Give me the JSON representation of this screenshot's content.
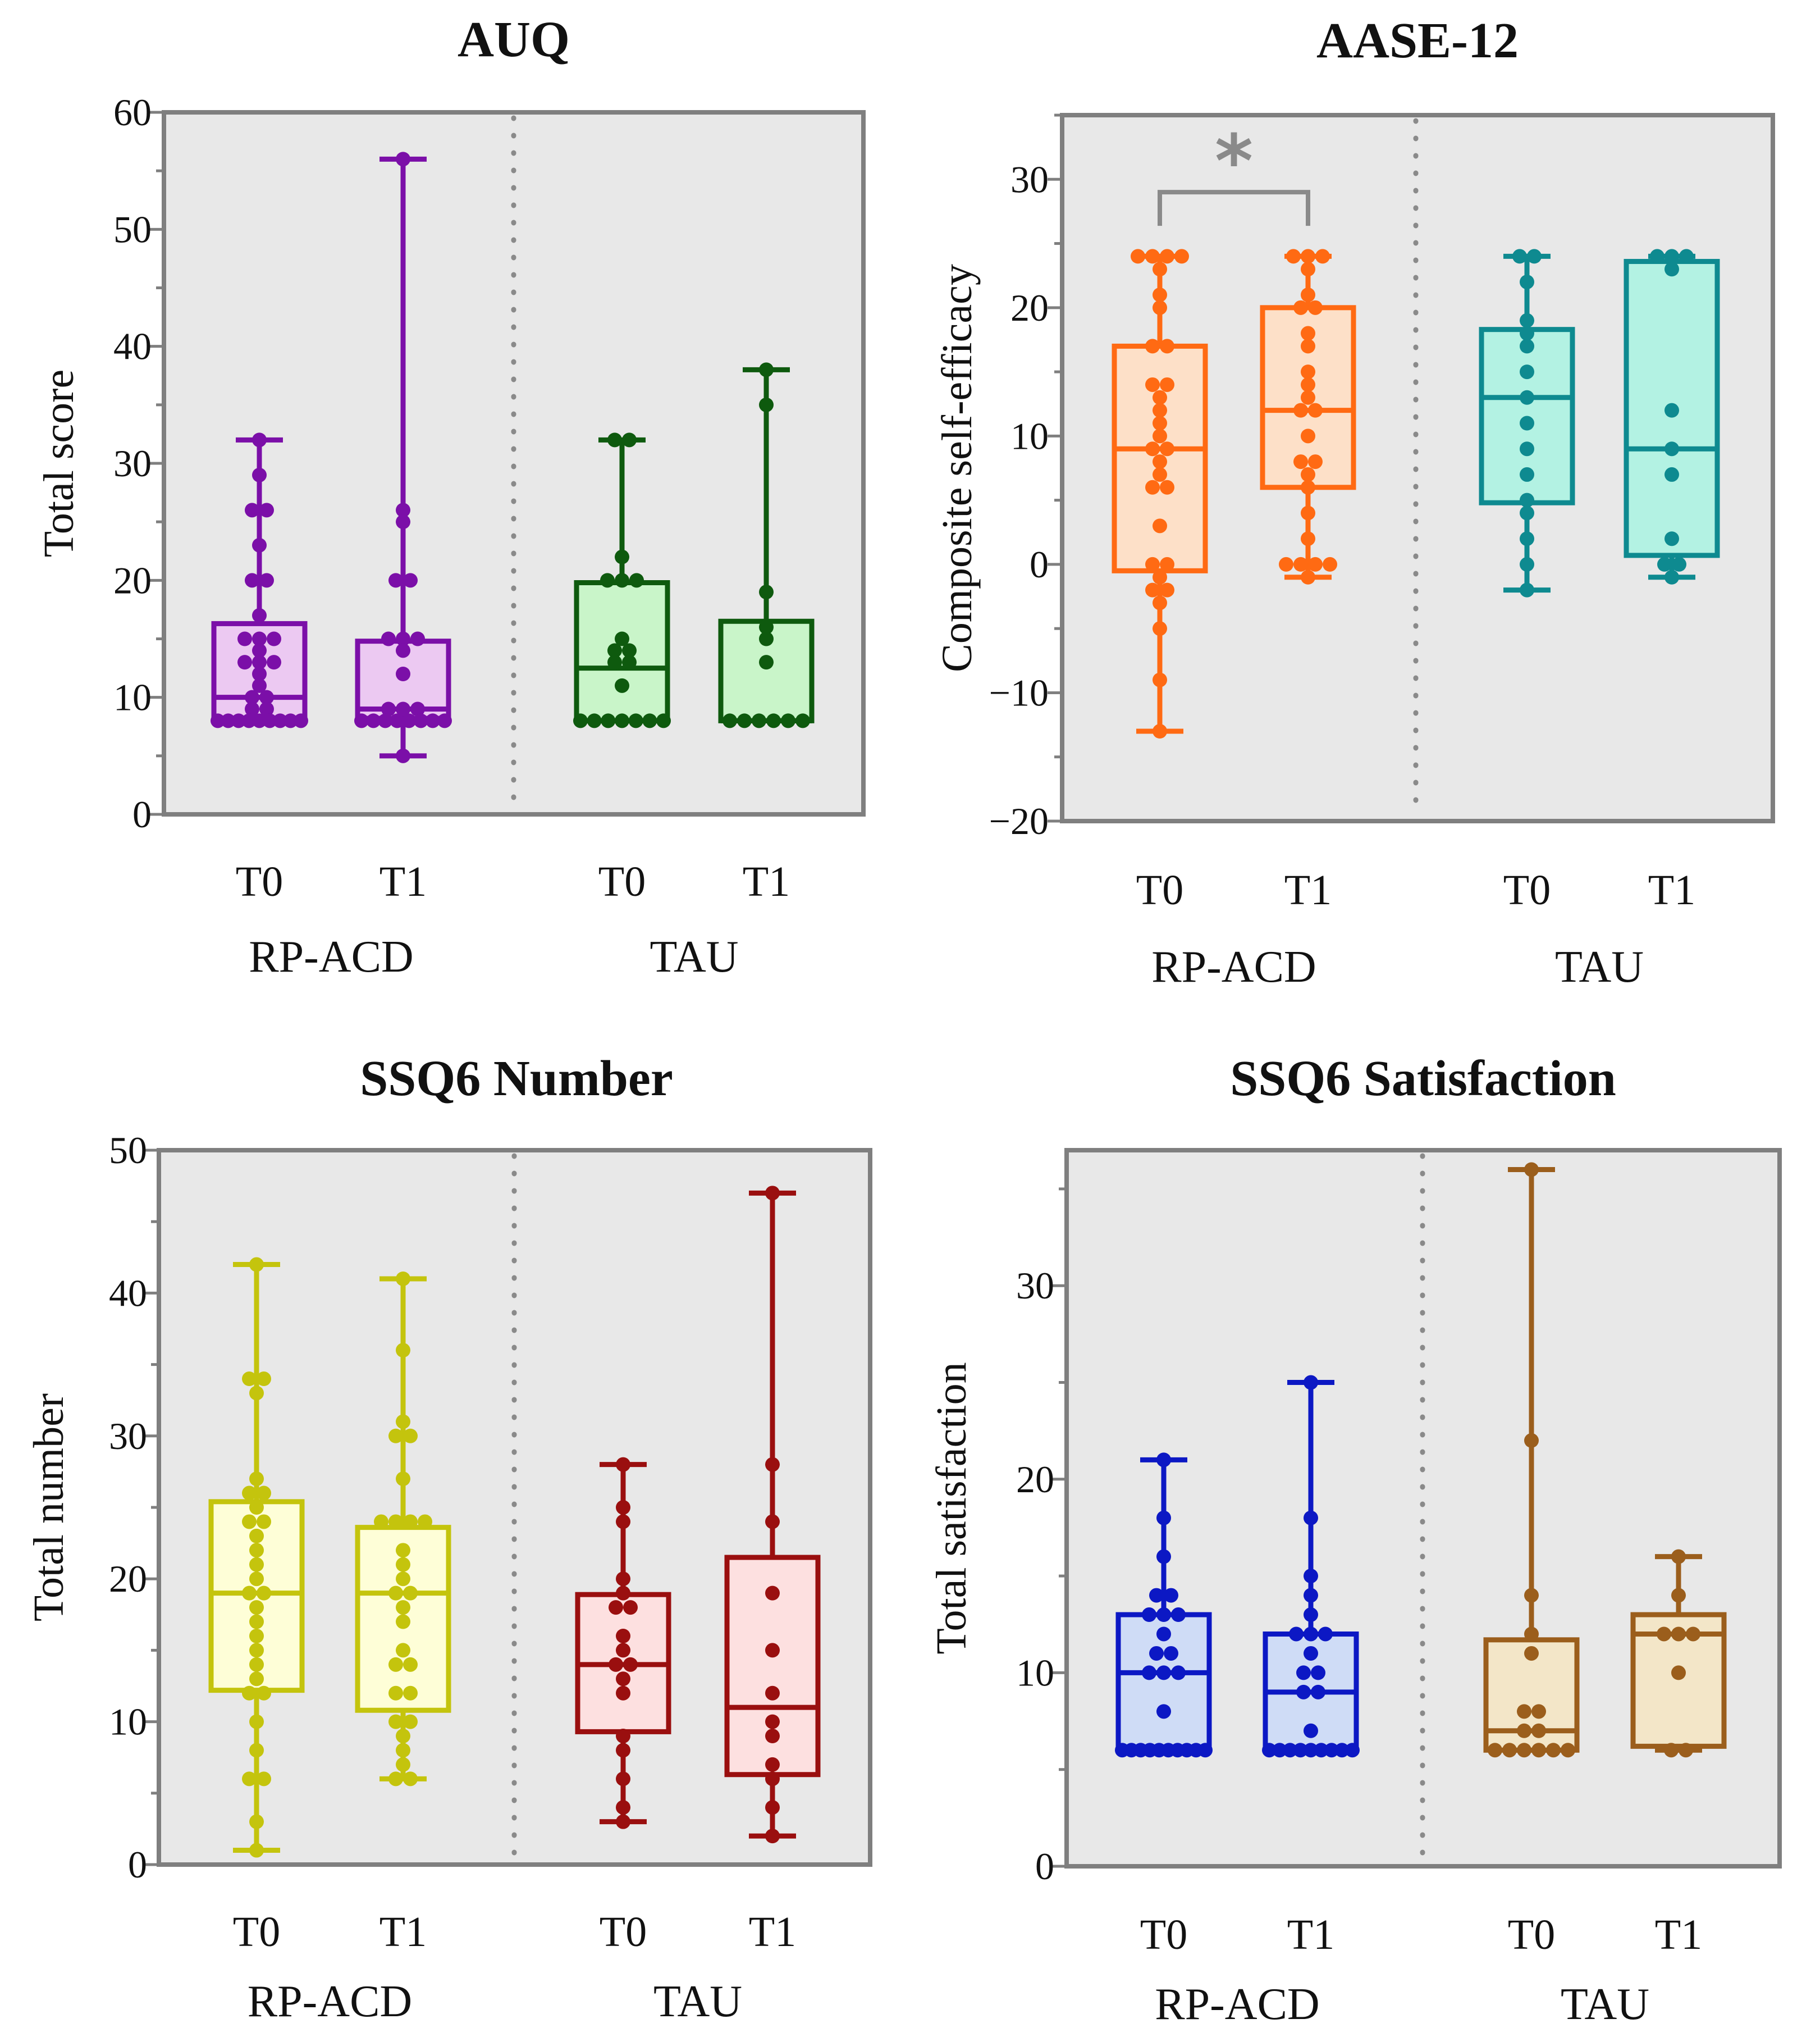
{
  "chart_data": [
    {
      "type": "box",
      "title": "AUQ",
      "ylabel": "Total score",
      "ylim": [
        0,
        60
      ],
      "yticks": [
        0,
        10,
        20,
        30,
        40,
        50,
        60
      ],
      "ytick_labels": [
        "0",
        "10",
        "20",
        "30",
        "40",
        "50",
        "60"
      ],
      "groups": [
        "RP-ACD",
        "TAU"
      ],
      "categories": [
        "T0",
        "T1",
        "T0",
        "T1"
      ],
      "boxes": [
        {
          "group": "RP-ACD",
          "time": "T0",
          "color": "#7b0fa8",
          "fill": "#ecc9f2",
          "min": 8,
          "q1": 8,
          "median": 10,
          "q3": 16.3,
          "max": 32,
          "points": [
            32,
            29,
            26,
            26,
            23,
            20,
            20,
            17,
            15,
            15,
            15,
            14,
            13,
            13,
            13,
            12,
            11,
            10,
            10,
            9,
            9,
            8,
            8,
            8,
            8,
            8,
            8,
            8,
            8,
            8
          ]
        },
        {
          "group": "RP-ACD",
          "time": "T1",
          "color": "#7b0fa8",
          "fill": "#ecc9f2",
          "min": 5,
          "q1": 8.2,
          "median": 9,
          "q3": 14.8,
          "max": 56,
          "points": [
            56,
            26,
            25,
            20,
            20,
            15,
            15,
            15,
            14,
            12,
            9,
            9,
            9,
            8,
            8,
            8,
            8,
            8,
            8,
            8,
            8,
            5
          ]
        },
        {
          "group": "TAU",
          "time": "T0",
          "color": "#0e5a0e",
          "fill": "#c9f5c9",
          "min": 8,
          "q1": 8,
          "median": 12.5,
          "q3": 19.8,
          "max": 32,
          "points": [
            32,
            32,
            22,
            20,
            20,
            20,
            15,
            14,
            14,
            13,
            13,
            11,
            8,
            8,
            8,
            8,
            8,
            8,
            8
          ]
        },
        {
          "group": "TAU",
          "time": "T1",
          "color": "#0e5a0e",
          "fill": "#c9f5c9",
          "min": 8,
          "q1": 8,
          "median": 8,
          "q3": 16.5,
          "max": 38,
          "points": [
            38,
            35,
            19,
            16,
            15,
            13,
            8,
            8,
            8,
            8,
            8,
            8
          ]
        }
      ],
      "annotations": []
    },
    {
      "type": "box",
      "title": "AASE-12",
      "ylabel": "Composite self-efficacy",
      "ylim": [
        -20,
        35
      ],
      "yticks": [
        -20,
        -10,
        0,
        10,
        20,
        30
      ],
      "ytick_labels": [
        "−20",
        "−10",
        "0",
        "10",
        "20",
        "30"
      ],
      "groups": [
        "RP-ACD",
        "TAU"
      ],
      "categories": [
        "T0",
        "T1",
        "T0",
        "T1"
      ],
      "boxes": [
        {
          "group": "RP-ACD",
          "time": "T0",
          "color": "#ff6a13",
          "fill": "#fde0c8",
          "min": -13,
          "q1": -0.5,
          "median": 9,
          "q3": 17,
          "max": 24,
          "points": [
            24,
            24,
            24,
            24,
            23,
            21,
            20,
            17,
            17,
            14,
            14,
            13,
            12,
            11,
            10,
            9,
            9,
            8,
            7,
            6,
            6,
            3,
            0,
            0,
            -1,
            -2,
            -2,
            -3,
            -5,
            -9,
            -13
          ]
        },
        {
          "group": "RP-ACD",
          "time": "T1",
          "color": "#ff6a13",
          "fill": "#fde0c8",
          "min": -1,
          "q1": 6,
          "median": 12,
          "q3": 20,
          "max": 24,
          "points": [
            24,
            24,
            24,
            23,
            21,
            20,
            20,
            18,
            17,
            15,
            14,
            13,
            12,
            12,
            10,
            8,
            8,
            7,
            6,
            4,
            2,
            0,
            0,
            0,
            0,
            -1
          ]
        },
        {
          "group": "TAU",
          "time": "T0",
          "color": "#0e8a90",
          "fill": "#b3f2e3",
          "min": -2,
          "q1": 4.8,
          "median": 13,
          "q3": 18.3,
          "max": 24,
          "points": [
            24,
            24,
            22,
            19,
            18,
            17,
            15,
            13,
            11,
            9,
            7,
            5,
            4,
            2,
            0,
            -2
          ]
        },
        {
          "group": "TAU",
          "time": "T1",
          "color": "#0e8a90",
          "fill": "#b3f2e3",
          "min": -1,
          "q1": 0.7,
          "median": 9,
          "q3": 23.6,
          "max": 24,
          "points": [
            24,
            24,
            24,
            23,
            12,
            9,
            7,
            2,
            0,
            0,
            -1
          ]
        }
      ],
      "annotations": [
        {
          "text": "*",
          "between": [
            "RP-ACD T0",
            "RP-ACD T1"
          ]
        }
      ]
    },
    {
      "type": "box",
      "title": "SSQ6 Number",
      "ylabel": "Total number",
      "ylim": [
        0,
        50
      ],
      "yticks": [
        0,
        10,
        20,
        30,
        40,
        50
      ],
      "ytick_labels": [
        "0",
        "10",
        "20",
        "30",
        "40",
        "50"
      ],
      "groups": [
        "RP-ACD",
        "TAU"
      ],
      "categories": [
        "T0",
        "T1",
        "T0",
        "T1"
      ],
      "boxes": [
        {
          "group": "RP-ACD",
          "time": "T0",
          "color": "#c4c40d",
          "fill": "#fefed7",
          "min": 1,
          "q1": 12.2,
          "median": 19,
          "q3": 25.4,
          "max": 42,
          "points": [
            42,
            34,
            34,
            33,
            27,
            26,
            26,
            25,
            24,
            24,
            23,
            22,
            21,
            20,
            19,
            19,
            18,
            17,
            16,
            15,
            14,
            13,
            12,
            12,
            10,
            8,
            6,
            6,
            3,
            1
          ]
        },
        {
          "group": "RP-ACD",
          "time": "T1",
          "color": "#c4c40d",
          "fill": "#fefed7",
          "min": 6,
          "q1": 10.8,
          "median": 19,
          "q3": 23.6,
          "max": 41,
          "points": [
            41,
            36,
            31,
            30,
            30,
            27,
            24,
            24,
            24,
            24,
            22,
            21,
            20,
            19,
            19,
            18,
            17,
            15,
            14,
            14,
            12,
            12,
            10,
            10,
            9,
            8,
            7,
            6,
            6
          ]
        },
        {
          "group": "TAU",
          "time": "T0",
          "color": "#9a0f0f",
          "fill": "#fde0e0",
          "min": 3,
          "q1": 9.3,
          "median": 14,
          "q3": 18.9,
          "max": 28,
          "points": [
            28,
            25,
            24,
            20,
            19,
            18,
            18,
            16,
            15,
            14,
            14,
            13,
            12,
            9,
            8,
            6,
            4,
            3
          ]
        },
        {
          "group": "TAU",
          "time": "T1",
          "color": "#9a0f0f",
          "fill": "#fde0e0",
          "min": 2,
          "q1": 6.3,
          "median": 11,
          "q3": 21.5,
          "max": 47,
          "points": [
            47,
            28,
            24,
            19,
            15,
            12,
            10,
            9,
            7,
            6,
            4,
            2
          ]
        }
      ],
      "annotations": []
    },
    {
      "type": "box",
      "title": "SSQ6 Satisfaction",
      "ylabel": "Total satisfaction",
      "ylim": [
        0,
        37
      ],
      "yticks": [
        0,
        10,
        20,
        30
      ],
      "ytick_labels": [
        "0",
        "10",
        "20",
        "30"
      ],
      "groups": [
        "RP-ACD",
        "TAU"
      ],
      "categories": [
        "T0",
        "T1",
        "T0",
        "T1"
      ],
      "boxes": [
        {
          "group": "RP-ACD",
          "time": "T0",
          "color": "#0c18c4",
          "fill": "#cfdcf6",
          "min": 6,
          "q1": 6,
          "median": 10,
          "q3": 13,
          "max": 21,
          "points": [
            21,
            18,
            16,
            14,
            14,
            13,
            13,
            13,
            12,
            11,
            11,
            10,
            10,
            10,
            8,
            6,
            6,
            6,
            6,
            6,
            6,
            6,
            6,
            6,
            6
          ]
        },
        {
          "group": "RP-ACD",
          "time": "T1",
          "color": "#0c18c4",
          "fill": "#cfdcf6",
          "min": 6,
          "q1": 6,
          "median": 9,
          "q3": 12,
          "max": 25,
          "points": [
            25,
            18,
            15,
            14,
            13,
            12,
            12,
            12,
            11,
            10,
            10,
            9,
            9,
            7,
            6,
            6,
            6,
            6,
            6,
            6,
            6,
            6,
            6
          ]
        },
        {
          "group": "TAU",
          "time": "T0",
          "color": "#9b5e1c",
          "fill": "#f3e6c8",
          "min": 6,
          "q1": 6,
          "median": 7,
          "q3": 11.7,
          "max": 36,
          "points": [
            36,
            22,
            14,
            12,
            11,
            8,
            8,
            7,
            7,
            6,
            6,
            6,
            6,
            6,
            6
          ]
        },
        {
          "group": "TAU",
          "time": "T1",
          "color": "#9b5e1c",
          "fill": "#f3e6c8",
          "min": 6,
          "q1": 6.2,
          "median": 12,
          "q3": 13,
          "max": 16,
          "points": [
            16,
            14,
            12,
            12,
            12,
            10,
            6,
            6
          ]
        }
      ],
      "annotations": []
    }
  ]
}
